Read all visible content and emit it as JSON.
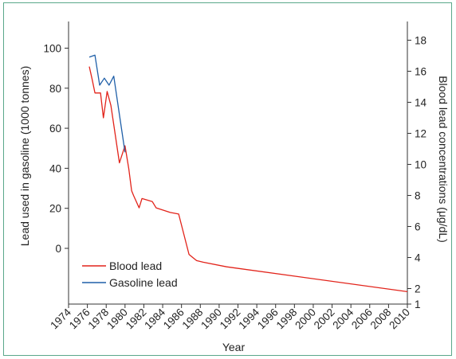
{
  "chart_data": {
    "type": "line",
    "xlabel": "Year",
    "ylabel_left": "Lead used in gasoline (1000 tonnes)",
    "ylabel_right": "Blood lead concentrations (μg/dL)",
    "x_ticks": [
      "1974",
      "1976",
      "1978",
      "1980",
      "1982",
      "1984",
      "1986",
      "1988",
      "1990",
      "1992",
      "1994",
      "1996",
      "1998",
      "2000",
      "2002",
      "2004",
      "2006",
      "2008",
      "2010"
    ],
    "xlim": [
      1974,
      2010
    ],
    "ylim_left": [
      -20,
      110
    ],
    "y_ticks_left": [
      "0",
      "20",
      "40",
      "60",
      "80",
      "100"
    ],
    "ylim_right": [
      1,
      18
    ],
    "y_ticks_right": [
      "1",
      "2",
      "4",
      "6",
      "8",
      "10",
      "12",
      "14",
      "16",
      "18"
    ],
    "legend_position": "bottom-left",
    "series": [
      {
        "name": "Blood lead",
        "color": "#e2231a",
        "axis": "right",
        "x": [
          1976.2,
          1976.5,
          1976.8,
          1977.4,
          1977.7,
          1978.1,
          1978.5,
          1979.4,
          1980.0,
          1980.4,
          1980.7,
          1980.9,
          1981.5,
          1981.8,
          1982.9,
          1983.3,
          1984.8,
          1985.7,
          1986.8,
          1987.2,
          1987.6,
          1988.3,
          1990.8,
          2010.0
        ],
        "y": [
          16.3,
          15.5,
          14.6,
          14.6,
          13.0,
          14.7,
          13.8,
          10.1,
          11.2,
          9.7,
          8.3,
          8.0,
          7.2,
          7.8,
          7.6,
          7.2,
          6.9,
          6.8,
          4.2,
          4.0,
          3.8,
          3.7,
          3.4,
          1.8
        ]
      },
      {
        "name": "Gasoline lead",
        "color": "#1f5fa8",
        "axis": "left",
        "x": [
          1976.2,
          1976.8,
          1977.3,
          1977.8,
          1978.3,
          1978.8,
          1979.3,
          1980.0
        ],
        "y": [
          95.5,
          96.5,
          81.5,
          85.0,
          81.5,
          86.0,
          70.0,
          48.0
        ]
      }
    ]
  }
}
